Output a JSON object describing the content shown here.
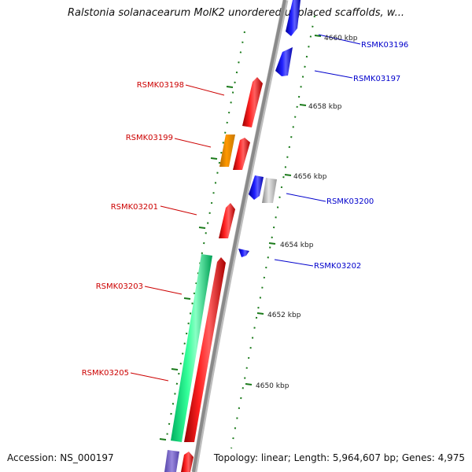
{
  "title": "Ralstonia solanacearum MolK2 unordered unplaced scaffolds, w...",
  "footer": {
    "accession": "Accession: NS_000197",
    "topology": "Topology: linear; Length: 5,964,607 bp; Genes: 4,975"
  },
  "colors": {
    "backbone": "#9a9a9a",
    "forward_gene": "#ff0000",
    "reverse_gene": "#0000ff",
    "highlight": "#ff9900",
    "rna_like": "#33ff99",
    "pseudo": "#bbbbbb",
    "tick": "#1a7a1a",
    "left_label": "#cc0000",
    "right_label": "#0000cc"
  },
  "scale_labels": [
    "4660 kbp",
    "4658 kbp",
    "4656 kbp",
    "4654 kbp",
    "4652 kbp",
    "4650 kbp"
  ],
  "genes": [
    {
      "label": "RSMK03196",
      "side": "right",
      "color": "#0000ff"
    },
    {
      "label": "RSMK03197",
      "side": "right",
      "color": "#0000ff"
    },
    {
      "label": "RSMK03198",
      "side": "left",
      "color": "#ff0000"
    },
    {
      "label": "RSMK03199",
      "side": "left",
      "color": "#ff9900"
    },
    {
      "label": "RSMK03200",
      "side": "right",
      "color": "#0000ff"
    },
    {
      "label": "RSMK03201",
      "side": "left",
      "color": "#ff0000"
    },
    {
      "label": "RSMK03202",
      "side": "right",
      "color": "#0000ff"
    },
    {
      "label": "RSMK03203",
      "side": "left",
      "color": "#33ff99"
    },
    {
      "label": "RSMK03205",
      "side": "left",
      "color": "#33ff99"
    }
  ]
}
